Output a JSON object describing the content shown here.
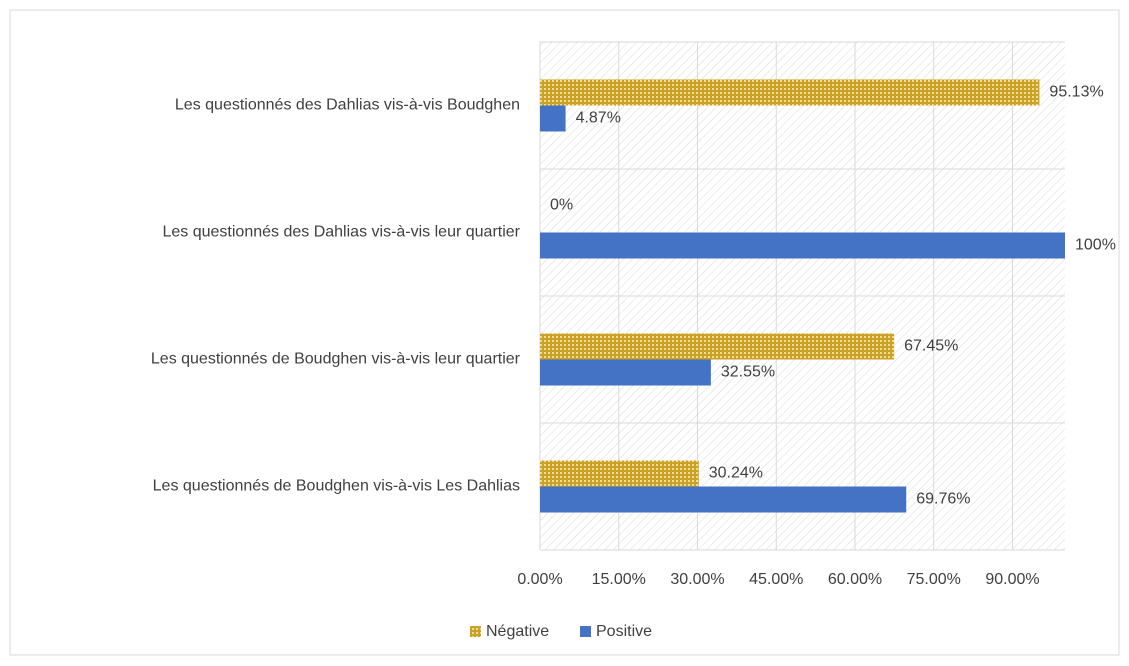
{
  "chart_data": {
    "type": "hbar",
    "categories": [
      "Les questionnés des Dahlias vis-à-vis Boudghen",
      "Les questionnés des Dahlias vis-à-vis leur quartier",
      "Les questionnés de Boudghen vis-à-vis leur quartier",
      "Les questionnés de Boudghen vis-à-vis Les Dahlias"
    ],
    "series": [
      {
        "name": "Négative",
        "color": "#c9a227",
        "values": [
          95.13,
          0,
          67.45,
          30.24
        ],
        "value_labels": [
          "95.13%",
          "0%",
          "67.45%",
          "30.24%"
        ]
      },
      {
        "name": "Positive",
        "color": "#4472c4",
        "values": [
          4.87,
          100,
          32.55,
          69.76
        ],
        "value_labels": [
          "4.87%",
          "100%",
          "32.55%",
          "69.76%"
        ]
      }
    ],
    "xlim": [
      0,
      100
    ],
    "xticks": [
      {
        "value": 0,
        "label": "0.00%"
      },
      {
        "value": 15,
        "label": "15.00%"
      },
      {
        "value": 30,
        "label": "30.00%"
      },
      {
        "value": 45,
        "label": "45.00%"
      },
      {
        "value": 60,
        "label": "60.00%"
      },
      {
        "value": 75,
        "label": "75.00%"
      },
      {
        "value": 90,
        "label": "90.00%"
      }
    ],
    "grid": true,
    "legend": "bottom"
  }
}
